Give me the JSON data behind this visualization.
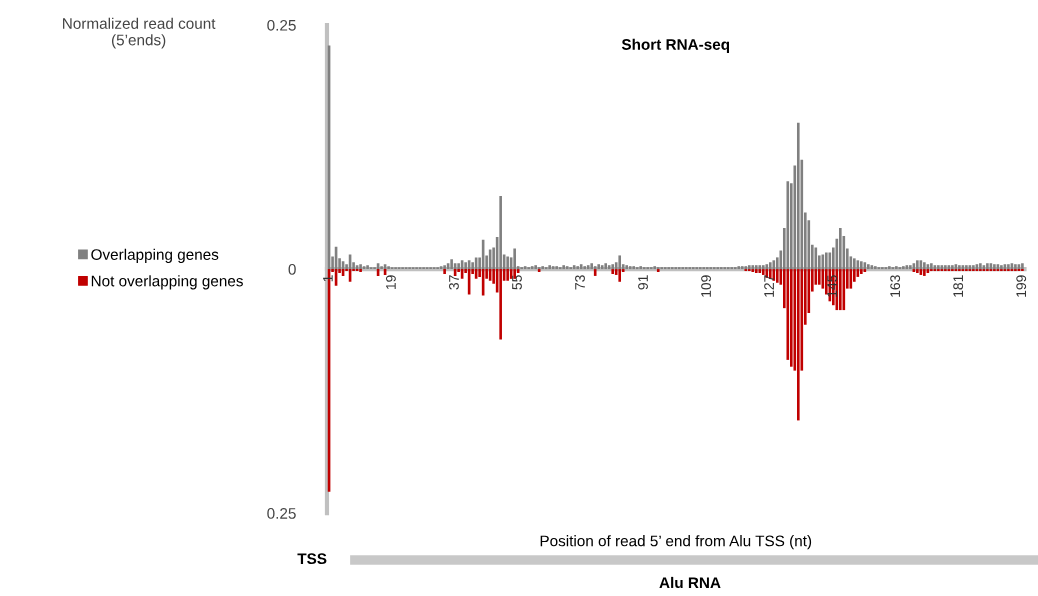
{
  "chart_data": {
    "type": "bar",
    "stacked": true,
    "title": "Short RNA-seq",
    "xlabel": "Position of read 5’ end from Alu TSS (nt)",
    "ylabel": "Normalized read count\n(5’ends)",
    "categories": [
      "1",
      null,
      null,
      null,
      null,
      null,
      null,
      null,
      null,
      null,
      null,
      null,
      null,
      null,
      null,
      null,
      null,
      null,
      "19",
      null,
      null,
      null,
      null,
      null,
      null,
      null,
      null,
      null,
      null,
      null,
      null,
      null,
      null,
      null,
      null,
      null,
      "37",
      null,
      null,
      null,
      null,
      null,
      null,
      null,
      null,
      null,
      null,
      null,
      null,
      null,
      null,
      null,
      null,
      null,
      "55",
      null,
      null,
      null,
      null,
      null,
      null,
      null,
      null,
      null,
      null,
      null,
      null,
      null,
      null,
      null,
      null,
      null,
      "73",
      null,
      null,
      null,
      null,
      null,
      null,
      null,
      null,
      null,
      null,
      null,
      null,
      null,
      null,
      null,
      null,
      null,
      "91",
      null,
      null,
      null,
      null,
      null,
      null,
      null,
      null,
      null,
      null,
      null,
      null,
      null,
      null,
      null,
      null,
      null,
      "109",
      null,
      null,
      null,
      null,
      null,
      null,
      null,
      null,
      null,
      null,
      null,
      null,
      null,
      null,
      null,
      null,
      null,
      "127",
      null,
      null,
      null,
      null,
      null,
      null,
      null,
      null,
      null,
      null,
      null,
      null,
      null,
      null,
      null,
      null,
      null,
      "145",
      null,
      null,
      null,
      null,
      null,
      null,
      null,
      null,
      null,
      null,
      null,
      null,
      null,
      null,
      null,
      null,
      null,
      "163",
      null,
      null,
      null,
      null,
      null,
      null,
      null,
      null,
      null,
      null,
      null,
      null,
      null,
      null,
      null,
      null,
      null,
      "181",
      null,
      null,
      null,
      null,
      null,
      null,
      null,
      null,
      null,
      null,
      null,
      null,
      null,
      null,
      null,
      null,
      null,
      "199"
    ],
    "series": [
      {
        "name": "Overlapping genes",
        "color": "#808080",
        "values": [
          0.229,
          0.013,
          0.023,
          0.011,
          0.008,
          0.005,
          0.015,
          0.007,
          0.004,
          0.005,
          0.003,
          0.004,
          0.002,
          0.002,
          0.006,
          0.003,
          0.005,
          0.003,
          0.002,
          0.002,
          0.002,
          0.002,
          0.002,
          0.002,
          0.002,
          0.002,
          0.002,
          0.002,
          0.002,
          0.002,
          0.002,
          0.002,
          0.003,
          0.004,
          0.006,
          0.01,
          0.006,
          0.006,
          0.009,
          0.007,
          0.009,
          0.007,
          0.012,
          0.012,
          0.03,
          0.014,
          0.02,
          0.022,
          0.033,
          0.075,
          0.015,
          0.013,
          0.012,
          0.021,
          0.003,
          0.002,
          0.003,
          0.002,
          0.003,
          0.004,
          0.002,
          0.003,
          0.002,
          0.004,
          0.003,
          0.003,
          0.002,
          0.004,
          0.003,
          0.002,
          0.004,
          0.003,
          0.005,
          0.003,
          0.004,
          0.006,
          0.003,
          0.005,
          0.004,
          0.006,
          0.004,
          0.005,
          0.007,
          0.014,
          0.005,
          0.004,
          0.003,
          0.003,
          0.002,
          0.003,
          0.002,
          0.002,
          0.002,
          0.003,
          0.002,
          0.002,
          0.002,
          0.002,
          0.002,
          0.002,
          0.002,
          0.002,
          0.002,
          0.002,
          0.002,
          0.002,
          0.002,
          0.002,
          0.002,
          0.002,
          0.002,
          0.002,
          0.002,
          0.002,
          0.002,
          0.002,
          0.002,
          0.003,
          0.003,
          0.003,
          0.004,
          0.004,
          0.004,
          0.004,
          0.004,
          0.005,
          0.007,
          0.009,
          0.012,
          0.019,
          0.042,
          0.09,
          0.088,
          0.106,
          0.15,
          0.112,
          0.058,
          0.05,
          0.025,
          0.022,
          0.014,
          0.015,
          0.017,
          0.017,
          0.022,
          0.031,
          0.042,
          0.034,
          0.021,
          0.013,
          0.011,
          0.009,
          0.008,
          0.007,
          0.005,
          0.004,
          0.003,
          0.002,
          0.002,
          0.002,
          0.003,
          0.002,
          0.003,
          0.002,
          0.003,
          0.004,
          0.004,
          0.006,
          0.009,
          0.009,
          0.007,
          0.005,
          0.006,
          0.004,
          0.004,
          0.004,
          0.004,
          0.004,
          0.004,
          0.005,
          0.004,
          0.004,
          0.004,
          0.004,
          0.004,
          0.005,
          0.006,
          0.004,
          0.006,
          0.006,
          0.005,
          0.005,
          0.004,
          0.005,
          0.005,
          0.006,
          0.005,
          0.005,
          0.006
        ]
      },
      {
        "name": "Not overlapping genes",
        "color": "#c00000",
        "values": [
          -0.228,
          -0.003,
          -0.017,
          -0.004,
          -0.007,
          -0.002,
          -0.013,
          -0.002,
          -0.002,
          -0.003,
          0,
          0,
          0,
          0,
          -0.007,
          0,
          -0.006,
          0,
          0,
          0,
          0,
          0,
          0,
          0,
          0,
          0,
          0,
          0,
          0,
          0,
          0,
          0,
          0,
          -0.005,
          0,
          0,
          -0.007,
          -0.003,
          -0.01,
          -0.004,
          -0.026,
          -0.005,
          -0.01,
          -0.008,
          -0.027,
          -0.01,
          -0.012,
          -0.015,
          -0.024,
          -0.072,
          -0.012,
          -0.012,
          -0.01,
          -0.01,
          -0.004,
          0,
          0,
          0,
          0,
          0,
          -0.003,
          0,
          0,
          0,
          0,
          0,
          0,
          0,
          0,
          0,
          0,
          0,
          0,
          0,
          0,
          0,
          -0.007,
          0,
          0,
          0,
          0,
          -0.005,
          -0.006,
          -0.013,
          -0.003,
          0,
          0,
          0,
          0,
          0,
          0,
          0,
          0,
          0,
          -0.003,
          0,
          0,
          0,
          0,
          0,
          0,
          0,
          0,
          0,
          0,
          0,
          0,
          0,
          0,
          0,
          0,
          0,
          0,
          0,
          0,
          0,
          0,
          0,
          0,
          -0.002,
          -0.002,
          -0.003,
          -0.004,
          -0.004,
          -0.006,
          -0.009,
          -0.01,
          -0.012,
          -0.014,
          -0.016,
          -0.04,
          -0.093,
          -0.1,
          -0.104,
          -0.155,
          -0.104,
          -0.057,
          -0.045,
          -0.023,
          -0.016,
          -0.016,
          -0.02,
          -0.026,
          -0.033,
          -0.037,
          -0.042,
          -0.042,
          -0.042,
          -0.02,
          -0.02,
          -0.013,
          -0.008,
          -0.005,
          -0.003,
          0,
          0,
          0,
          0,
          0,
          0,
          0,
          0,
          0,
          0,
          0,
          0,
          0,
          -0.003,
          -0.004,
          -0.006,
          -0.007,
          -0.004,
          -0.002,
          -0.002,
          -0.002,
          -0.002,
          -0.002,
          -0.002,
          -0.002,
          -0.002,
          -0.002,
          -0.002,
          -0.002,
          -0.002,
          -0.002,
          -0.002,
          -0.002,
          -0.002,
          -0.002,
          -0.002,
          -0.002,
          -0.002,
          -0.002,
          -0.002,
          -0.002,
          -0.002,
          -0.002,
          -0.002,
          -0.002
        ]
      }
    ],
    "ylim": [
      -0.25,
      0.25
    ],
    "yticks": [
      {
        "value": -0.25,
        "label": "0.25"
      },
      0,
      0.25
    ],
    "legend": "left",
    "marker": "square",
    "annotations": [
      "TSS",
      "Alu RNA"
    ]
  }
}
